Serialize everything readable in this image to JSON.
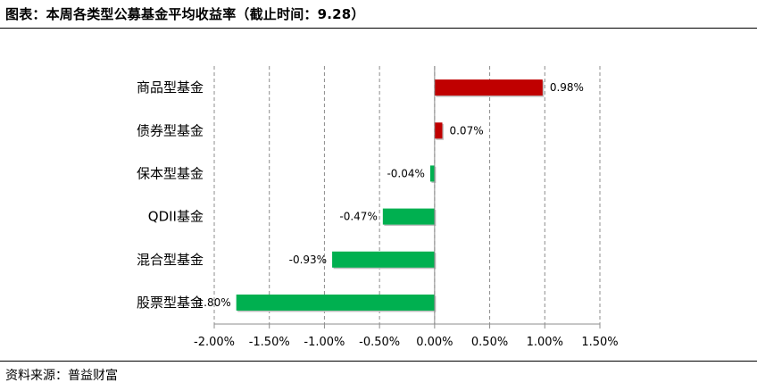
{
  "header": {
    "title": "图表：本周各类型公募基金平均收益率（截止时间：9.28）"
  },
  "footer": {
    "source": "资料来源：普益财富"
  },
  "chart_data": {
    "type": "bar",
    "orientation": "horizontal",
    "categories": [
      "商品型基金",
      "债券型基金",
      "保本型基金",
      "QDII基金",
      "混合型基金",
      "股票型基金"
    ],
    "values": [
      0.98,
      0.07,
      -0.04,
      -0.47,
      -0.93,
      -1.8
    ],
    "data_labels": [
      "0.98%",
      "0.07%",
      "-0.04%",
      "-0.47%",
      "-0.93%",
      "-1.80%"
    ],
    "x_ticks": [
      -2.0,
      -1.5,
      -1.0,
      -0.5,
      0.0,
      0.5,
      1.0,
      1.5
    ],
    "x_tick_labels": [
      "-2.00%",
      "-1.50%",
      "-1.00%",
      "-0.50%",
      "0.00%",
      "0.50%",
      "1.00%",
      "1.50%"
    ],
    "xlim": [
      -2.0,
      1.5
    ],
    "grid": "vertical dashed",
    "legend": "none",
    "colors": {
      "positive": "#c00000",
      "negative": "#00b050"
    }
  }
}
